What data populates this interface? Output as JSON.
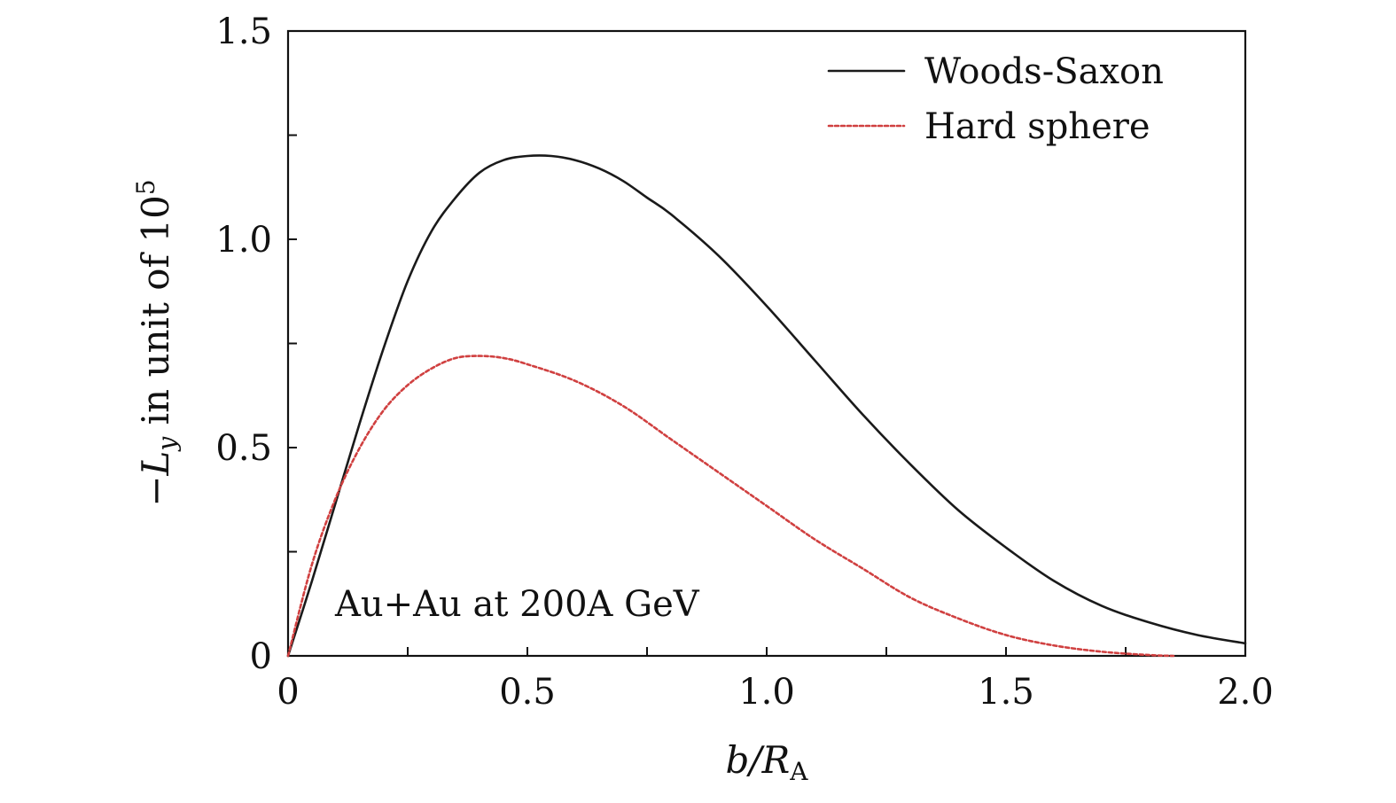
{
  "chart_data": {
    "type": "line",
    "xlabel": "b/R_A",
    "xlabel_parts": {
      "main": "b/R",
      "sub": "A"
    },
    "ylabel": "−L_y in unit of 10^5",
    "ylabel_parts": {
      "minus": "−",
      "symbol": "L",
      "sub": "y",
      "text": " in unit of 10",
      "sup": "5"
    },
    "xlim": [
      0,
      2.0
    ],
    "ylim": [
      0,
      1.5
    ],
    "x_ticks": [
      0,
      0.25,
      0.5,
      0.75,
      1.0,
      1.25,
      1.5,
      1.75,
      2.0
    ],
    "x_tick_labels": [
      {
        "value": 0,
        "text": "0"
      },
      {
        "value": 0.5,
        "text": "0.5"
      },
      {
        "value": 1.0,
        "text": "1.0"
      },
      {
        "value": 1.5,
        "text": "1.5"
      },
      {
        "value": 2.0,
        "text": "2.0"
      }
    ],
    "y_ticks": [
      0,
      0.25,
      0.5,
      0.75,
      1.0,
      1.25,
      1.5
    ],
    "y_tick_labels": [
      {
        "value": 0,
        "text": "0"
      },
      {
        "value": 0.5,
        "text": "0.5"
      },
      {
        "value": 1.0,
        "text": "1.0"
      },
      {
        "value": 1.5,
        "text": "1.5"
      }
    ],
    "annotation": "Au+Au at 200A GeV",
    "legend_position": "top-right",
    "grid": false,
    "series": [
      {
        "name": "Woods-Saxon",
        "color": "#1a1a1a",
        "style": "solid",
        "x": [
          0,
          0.05,
          0.1,
          0.15,
          0.2,
          0.25,
          0.3,
          0.35,
          0.4,
          0.45,
          0.5,
          0.55,
          0.6,
          0.65,
          0.7,
          0.75,
          0.8,
          0.9,
          1.0,
          1.1,
          1.2,
          1.3,
          1.4,
          1.5,
          1.6,
          1.7,
          1.8,
          1.9,
          2.0
        ],
        "y": [
          0,
          0.18,
          0.37,
          0.56,
          0.74,
          0.9,
          1.02,
          1.1,
          1.16,
          1.19,
          1.2,
          1.2,
          1.19,
          1.17,
          1.14,
          1.1,
          1.06,
          0.96,
          0.84,
          0.71,
          0.58,
          0.46,
          0.35,
          0.26,
          0.18,
          0.12,
          0.08,
          0.05,
          0.03
        ]
      },
      {
        "name": "Hard sphere",
        "color": "#d04040",
        "style": "dotted",
        "x": [
          0,
          0.05,
          0.1,
          0.15,
          0.2,
          0.25,
          0.3,
          0.35,
          0.4,
          0.45,
          0.5,
          0.6,
          0.7,
          0.8,
          0.9,
          1.0,
          1.1,
          1.2,
          1.3,
          1.4,
          1.5,
          1.6,
          1.7,
          1.8,
          1.85
        ],
        "y": [
          0,
          0.22,
          0.38,
          0.5,
          0.59,
          0.65,
          0.69,
          0.715,
          0.72,
          0.715,
          0.7,
          0.66,
          0.6,
          0.52,
          0.44,
          0.36,
          0.28,
          0.21,
          0.14,
          0.09,
          0.05,
          0.025,
          0.01,
          0.002,
          0
        ]
      }
    ]
  }
}
